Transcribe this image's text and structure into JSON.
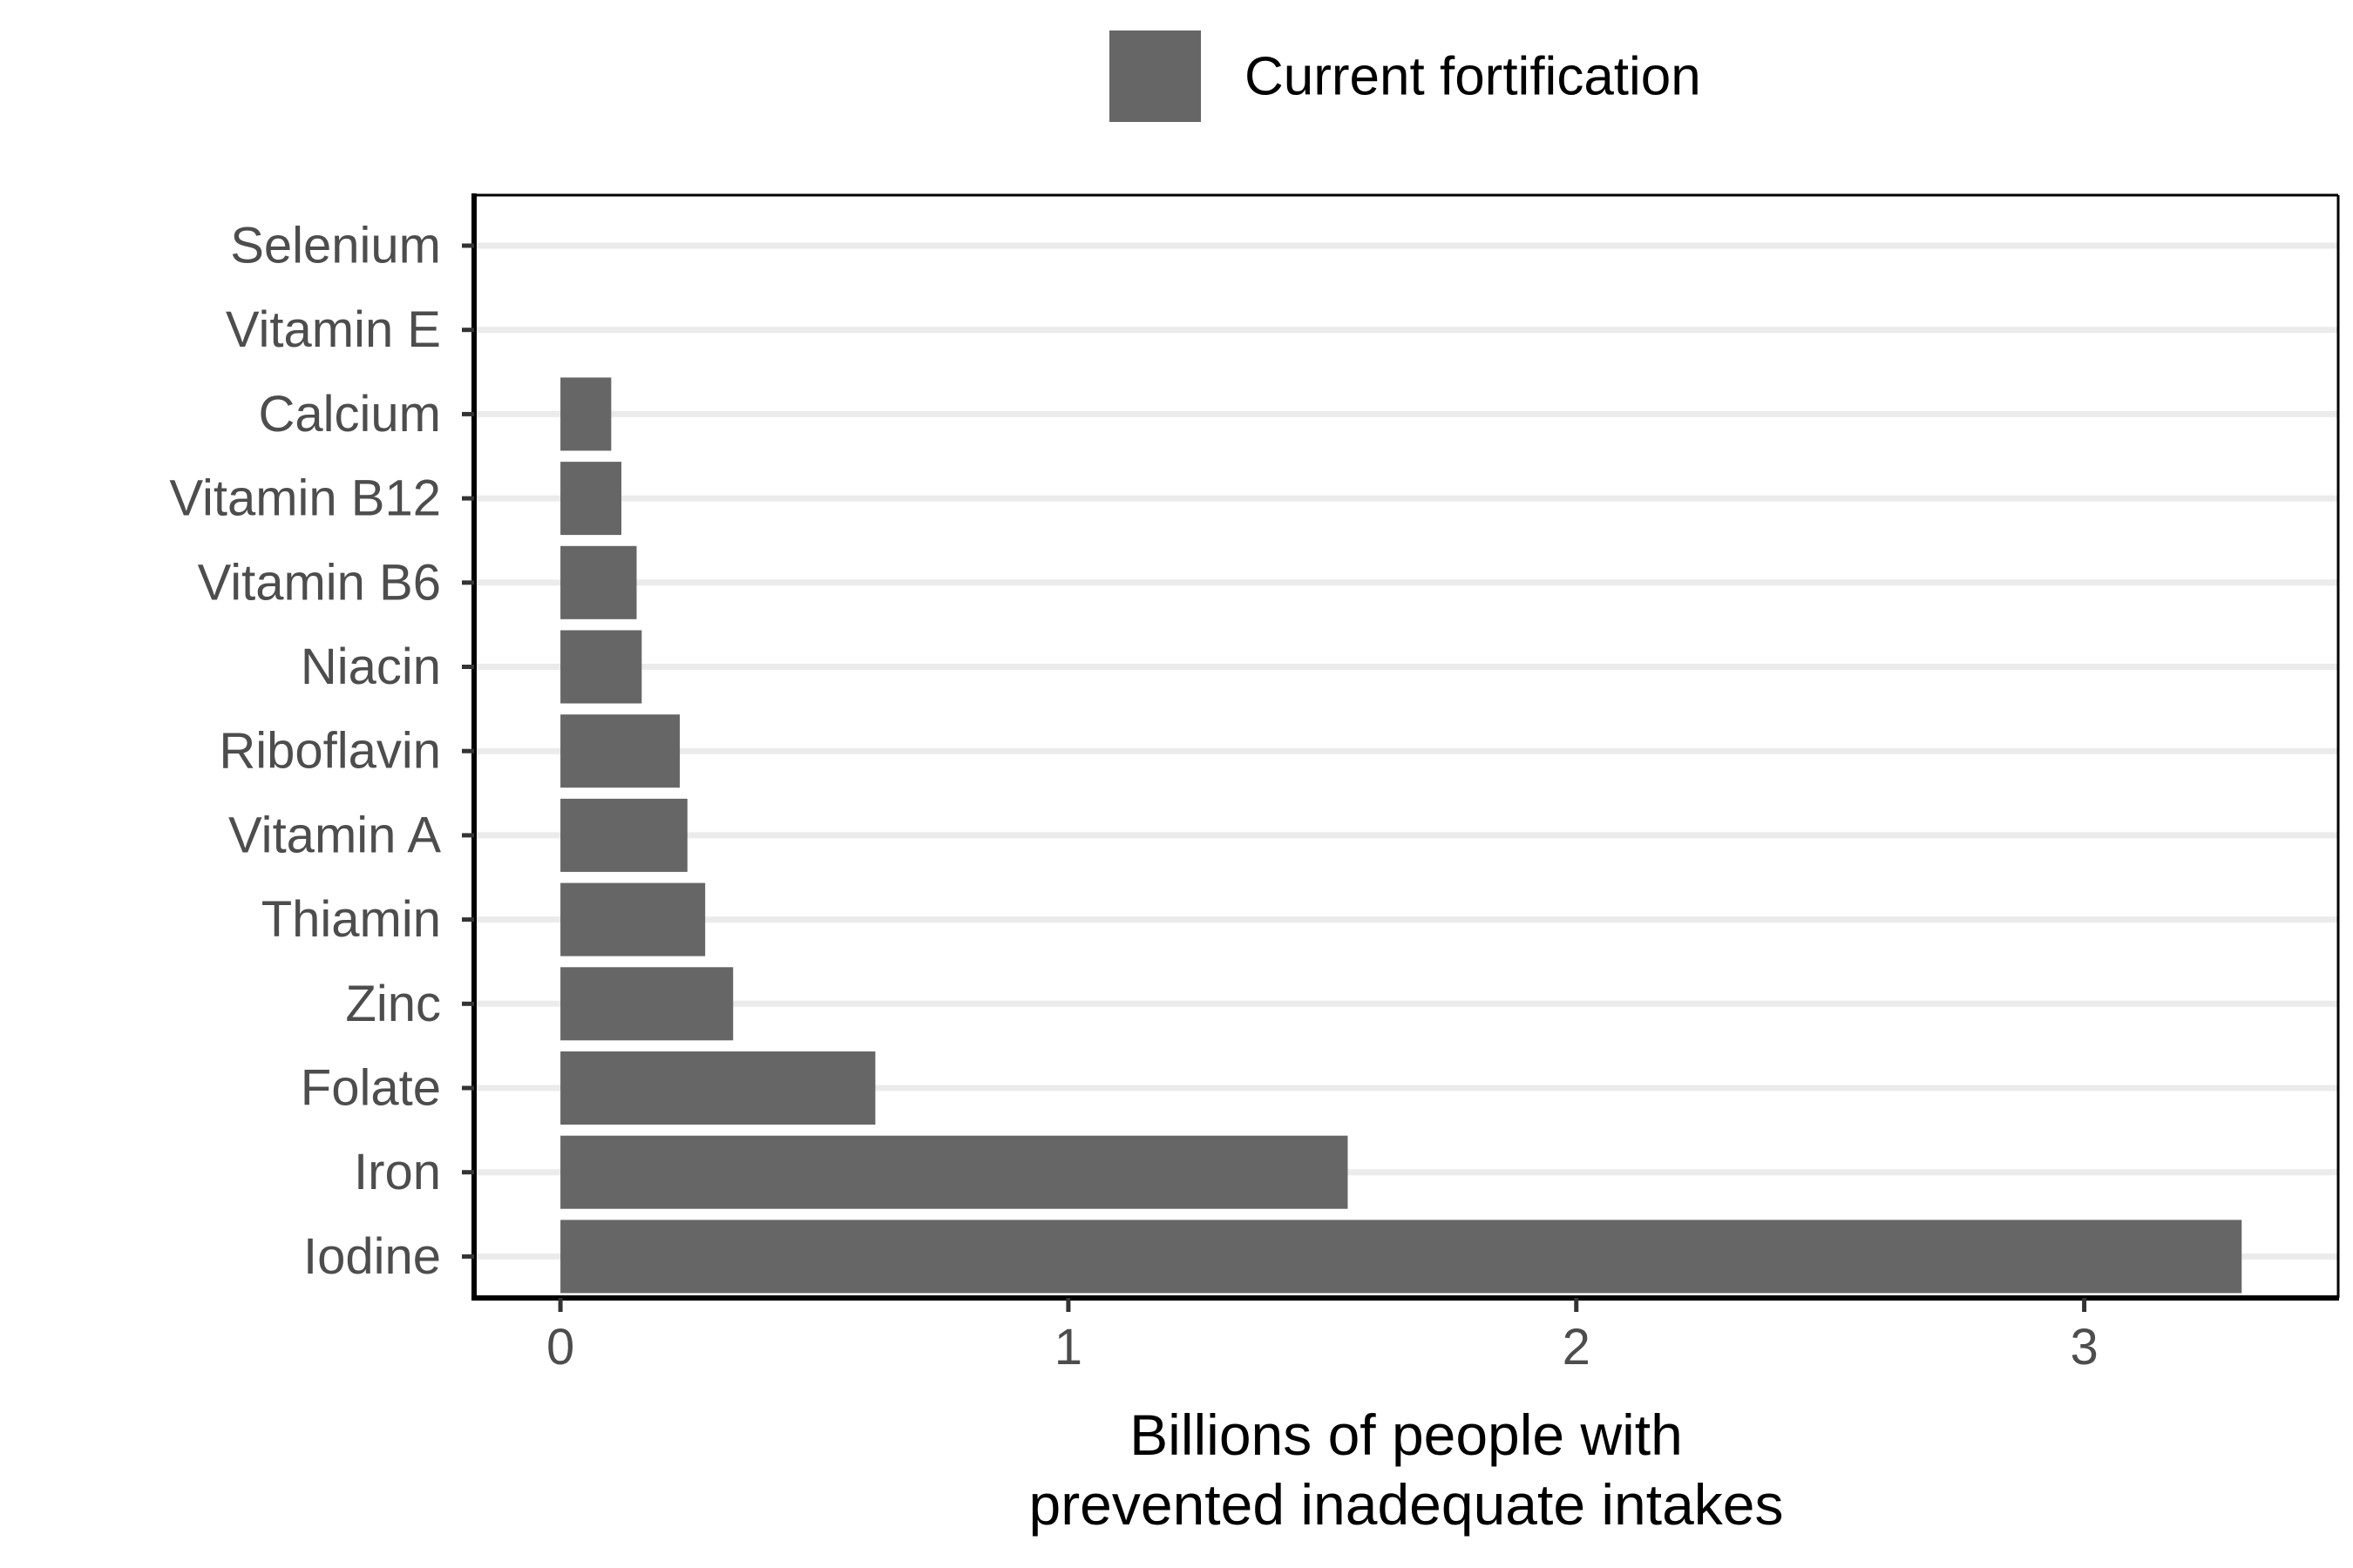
{
  "chart_data": {
    "type": "bar",
    "orientation": "horizontal",
    "title": "",
    "categories": [
      "Selenium",
      "Vitamin E",
      "Calcium",
      "Vitamin B12",
      "Vitamin B6",
      "Niacin",
      "Riboflavin",
      "Vitamin A",
      "Thiamin",
      "Zinc",
      "Folate",
      "Iron",
      "Iodine"
    ],
    "series": [
      {
        "name": "Current fortification",
        "values": [
          0,
          0,
          0.1,
          0.12,
          0.15,
          0.16,
          0.235,
          0.25,
          0.285,
          0.34,
          0.62,
          1.55,
          3.31
        ]
      }
    ],
    "xlabel": [
      "Billions of people with",
      "prevented inadequate intakes"
    ],
    "ylabel": "",
    "xlim": [
      -0.17,
      3.5
    ],
    "xticks": [
      "0",
      "1",
      "2",
      "3"
    ],
    "xtick_values": [
      0,
      1,
      2,
      3
    ],
    "grid": "horizontal major lines",
    "legend_position": "top",
    "colors": {
      "bar": "#666666",
      "grid": "#ebebeb",
      "axis": "#000000",
      "tick_label": "#4d4d4d"
    }
  }
}
